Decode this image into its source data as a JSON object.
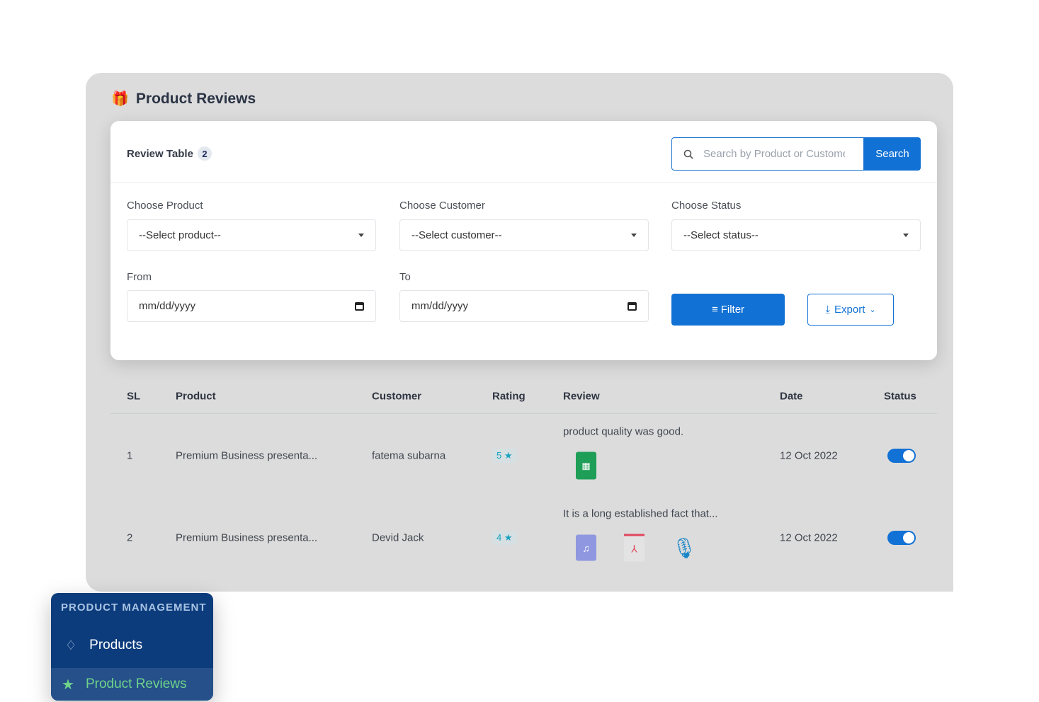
{
  "page": {
    "title": "Product Reviews",
    "title_icon": "gift-icon"
  },
  "card": {
    "table_title": "Review Table",
    "count": "2",
    "search_placeholder": "Search by Product or Customer",
    "search_button": "Search"
  },
  "filters": {
    "product_label": "Choose Product",
    "product_value": "--Select product--",
    "customer_label": "Choose Customer",
    "customer_value": "--Select customer--",
    "status_label": "Choose Status",
    "status_value": "--Select status--",
    "from_label": "From",
    "from_value": "mm/dd/yyyy",
    "to_label": "To",
    "to_value": "mm/dd/yyyy",
    "filter_button": "Filter",
    "export_button": "Export"
  },
  "table": {
    "headers": [
      "SL",
      "Product",
      "Customer",
      "Rating",
      "Review",
      "Date",
      "Status"
    ],
    "rows": [
      {
        "sl": "1",
        "product": "Premium Business presenta...",
        "customer": "fatema subarna",
        "rating": "5",
        "review": "product quality was good.",
        "attachments": [
          "spreadsheet-icon"
        ],
        "date": "12 Oct 2022",
        "status_on": true
      },
      {
        "sl": "2",
        "product": "Premium Business presenta...",
        "customer": "Devid Jack",
        "rating": "4",
        "review": "It is a long established fact that...",
        "attachments": [
          "mp3-file-icon",
          "pdf-file-icon",
          "podcast-mic-icon"
        ],
        "date": "12 Oct 2022",
        "status_on": true
      }
    ]
  },
  "sidebar": {
    "heading": "PRODUCT MANAGEMENT",
    "items": [
      {
        "label": "Products",
        "icon": "diamond-icon"
      },
      {
        "label": "Product Reviews",
        "icon": "star-icon",
        "active": true
      }
    ]
  },
  "colors": {
    "primary": "#1171d4",
    "sidebar": "#0c3c7c",
    "active_text": "#6fd38a",
    "rating": "#1aa3c0"
  }
}
